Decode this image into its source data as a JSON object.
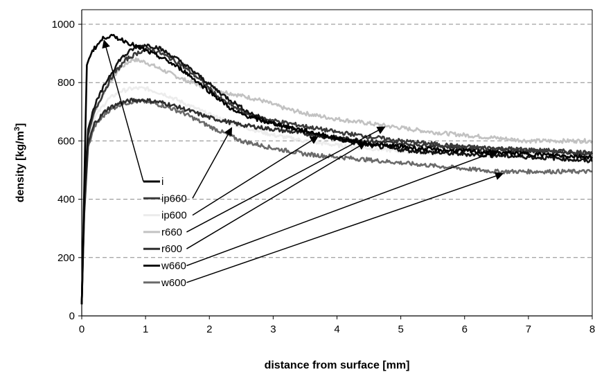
{
  "chart_data": {
    "type": "line",
    "title": "",
    "xlabel": "distance from surface [mm]",
    "ylabel": "density [kg/m",
    "ylabel_sup": "3",
    "ylabel_end": "]",
    "xlim": [
      0,
      8
    ],
    "ylim": [
      0,
      1050
    ],
    "x_ticks": [
      0,
      1,
      2,
      3,
      4,
      5,
      6,
      7,
      8
    ],
    "y_ticks": [
      0,
      200,
      400,
      600,
      800,
      1000
    ],
    "y_grid": true,
    "grid_style": "dashed horizontal",
    "legend_position": "center-left inside plot",
    "series": [
      {
        "name": "i",
        "color": "#000000",
        "points": [
          [
            0,
            40
          ],
          [
            0.03,
            350
          ],
          [
            0.08,
            860
          ],
          [
            0.15,
            905
          ],
          [
            0.25,
            930
          ],
          [
            0.35,
            955
          ],
          [
            0.45,
            960
          ],
          [
            0.6,
            950
          ],
          [
            0.75,
            935
          ],
          [
            0.9,
            920
          ],
          [
            1.1,
            900
          ],
          [
            1.3,
            880
          ],
          [
            1.6,
            840
          ],
          [
            2.0,
            770
          ],
          [
            2.4,
            700
          ],
          [
            2.8,
            670
          ],
          [
            3.2,
            650
          ],
          [
            3.6,
            630
          ],
          [
            4.0,
            610
          ],
          [
            4.5,
            590
          ],
          [
            5.0,
            580
          ],
          [
            5.5,
            570
          ],
          [
            6.0,
            565
          ],
          [
            6.5,
            560
          ],
          [
            7.0,
            555
          ],
          [
            7.5,
            550
          ],
          [
            8.0,
            545
          ]
        ],
        "arrow_to": [
          0.35,
          945
        ]
      },
      {
        "name": "ip660",
        "color": "#3a3a3a",
        "points": [
          [
            0,
            40
          ],
          [
            0.04,
            400
          ],
          [
            0.1,
            620
          ],
          [
            0.2,
            700
          ],
          [
            0.35,
            770
          ],
          [
            0.5,
            830
          ],
          [
            0.7,
            880
          ],
          [
            0.9,
            905
          ],
          [
            1.05,
            915
          ],
          [
            1.2,
            905
          ],
          [
            1.5,
            870
          ],
          [
            1.8,
            820
          ],
          [
            2.2,
            740
          ],
          [
            2.6,
            690
          ],
          [
            3.0,
            670
          ],
          [
            3.5,
            650
          ],
          [
            4.0,
            630
          ],
          [
            4.5,
            615
          ],
          [
            5.0,
            600
          ],
          [
            5.5,
            590
          ],
          [
            6.0,
            580
          ],
          [
            6.5,
            575
          ],
          [
            7.0,
            570
          ],
          [
            7.5,
            565
          ],
          [
            8.0,
            560
          ]
        ],
        "arrow_to": [
          2.35,
          645
        ]
      },
      {
        "name": "ip600",
        "color": "#ececec",
        "points": [
          [
            0,
            40
          ],
          [
            0.04,
            380
          ],
          [
            0.1,
            600
          ],
          [
            0.2,
            680
          ],
          [
            0.4,
            740
          ],
          [
            0.6,
            770
          ],
          [
            0.8,
            780
          ],
          [
            1.0,
            780
          ],
          [
            1.3,
            760
          ],
          [
            1.6,
            730
          ],
          [
            2.0,
            690
          ],
          [
            2.5,
            650
          ],
          [
            3.0,
            620
          ],
          [
            3.5,
            600
          ],
          [
            4.0,
            585
          ],
          [
            4.5,
            575
          ],
          [
            5.0,
            565
          ],
          [
            5.5,
            560
          ],
          [
            6.0,
            555
          ],
          [
            6.5,
            550
          ],
          [
            7.0,
            548
          ],
          [
            7.5,
            545
          ],
          [
            8.0,
            545
          ]
        ],
        "arrow_to": [
          3.7,
          615
        ]
      },
      {
        "name": "r660",
        "color": "#c2c2c2",
        "points": [
          [
            0,
            40
          ],
          [
            0.04,
            390
          ],
          [
            0.1,
            610
          ],
          [
            0.2,
            700
          ],
          [
            0.4,
            790
          ],
          [
            0.6,
            850
          ],
          [
            0.8,
            880
          ],
          [
            1.0,
            870
          ],
          [
            1.3,
            840
          ],
          [
            1.6,
            810
          ],
          [
            2.0,
            780
          ],
          [
            2.4,
            760
          ],
          [
            2.8,
            740
          ],
          [
            3.2,
            710
          ],
          [
            3.6,
            690
          ],
          [
            4.0,
            675
          ],
          [
            4.5,
            660
          ],
          [
            5.0,
            645
          ],
          [
            5.5,
            630
          ],
          [
            6.0,
            620
          ],
          [
            6.5,
            610
          ],
          [
            7.0,
            600
          ],
          [
            7.5,
            600
          ],
          [
            8.0,
            600
          ]
        ],
        "arrow_to": [
          4.75,
          648
        ]
      },
      {
        "name": "r600",
        "color": "#2e2e2e",
        "points": [
          [
            0,
            40
          ],
          [
            0.04,
            360
          ],
          [
            0.1,
            590
          ],
          [
            0.2,
            660
          ],
          [
            0.4,
            710
          ],
          [
            0.6,
            730
          ],
          [
            0.8,
            740
          ],
          [
            1.0,
            740
          ],
          [
            1.3,
            730
          ],
          [
            1.6,
            710
          ],
          [
            2.0,
            680
          ],
          [
            2.5,
            655
          ],
          [
            3.0,
            640
          ],
          [
            3.5,
            625
          ],
          [
            4.0,
            610
          ],
          [
            4.5,
            600
          ],
          [
            5.0,
            590
          ],
          [
            5.5,
            585
          ],
          [
            6.0,
            575
          ],
          [
            6.5,
            570
          ],
          [
            7.0,
            565
          ],
          [
            7.5,
            560
          ],
          [
            8.0,
            555
          ]
        ],
        "arrow_to": [
          4.45,
          595
        ]
      },
      {
        "name": "w660",
        "color": "#141414",
        "points": [
          [
            0,
            40
          ],
          [
            0.04,
            410
          ],
          [
            0.1,
            640
          ],
          [
            0.2,
            720
          ],
          [
            0.4,
            810
          ],
          [
            0.6,
            880
          ],
          [
            0.8,
            915
          ],
          [
            1.0,
            930
          ],
          [
            1.2,
            920
          ],
          [
            1.5,
            880
          ],
          [
            1.8,
            830
          ],
          [
            2.2,
            760
          ],
          [
            2.6,
            700
          ],
          [
            3.0,
            660
          ],
          [
            3.5,
            630
          ],
          [
            4.0,
            605
          ],
          [
            4.5,
            585
          ],
          [
            5.0,
            570
          ],
          [
            5.5,
            560
          ],
          [
            6.0,
            555
          ],
          [
            6.5,
            550
          ],
          [
            7.0,
            545
          ],
          [
            7.5,
            540
          ],
          [
            8.0,
            530
          ]
        ],
        "arrow_to": [
          6.5,
          565
        ]
      },
      {
        "name": "w600",
        "color": "#6a6a6a",
        "points": [
          [
            0,
            40
          ],
          [
            0.04,
            350
          ],
          [
            0.1,
            580
          ],
          [
            0.2,
            650
          ],
          [
            0.4,
            700
          ],
          [
            0.6,
            725
          ],
          [
            0.8,
            735
          ],
          [
            1.0,
            735
          ],
          [
            1.3,
            720
          ],
          [
            1.6,
            695
          ],
          [
            2.0,
            650
          ],
          [
            2.5,
            600
          ],
          [
            3.0,
            575
          ],
          [
            3.5,
            555
          ],
          [
            4.0,
            545
          ],
          [
            4.5,
            535
          ],
          [
            5.0,
            525
          ],
          [
            5.5,
            515
          ],
          [
            6.0,
            505
          ],
          [
            6.5,
            495
          ],
          [
            7.0,
            495
          ],
          [
            7.5,
            495
          ],
          [
            8.0,
            495
          ]
        ],
        "arrow_to": [
          6.6,
          488
        ]
      }
    ]
  }
}
